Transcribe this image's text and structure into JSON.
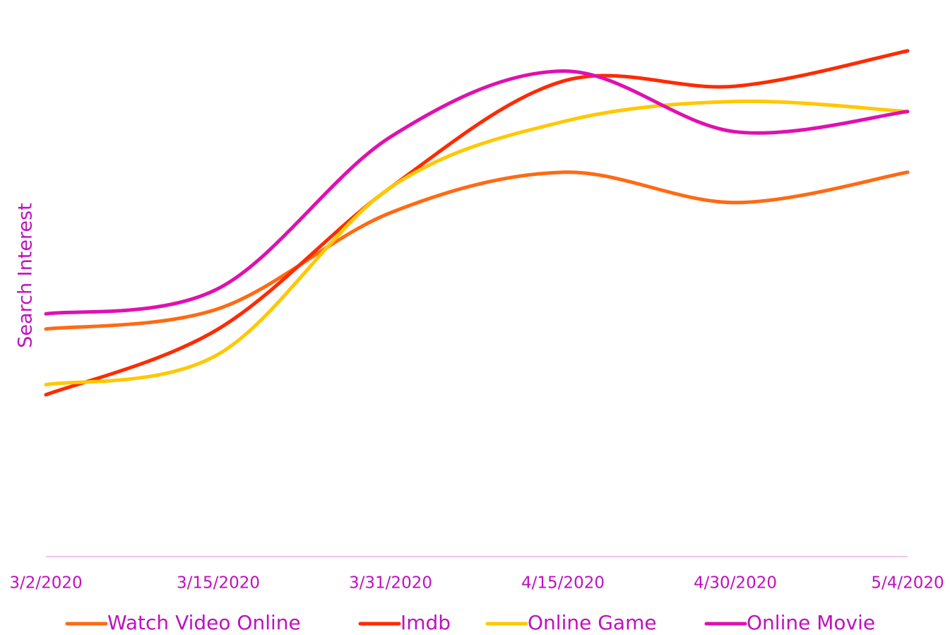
{
  "chart_data": {
    "type": "line",
    "y_label": "Search Interest",
    "categories": [
      "3/2/2020",
      "3/15/2020",
      "3/31/2020",
      "4/15/2020",
      "4/30/2020",
      "5/4/2020"
    ],
    "series": [
      {
        "name": "Watch Video Online",
        "color": "#ff6a13",
        "values": [
          45,
          49,
          68,
          76,
          70,
          76
        ]
      },
      {
        "name": "Imdb",
        "color": "#ff2a00",
        "values": [
          32,
          45,
          73,
          94,
          93,
          100
        ]
      },
      {
        "name": "Online Game",
        "color": "#ffc800",
        "values": [
          34,
          40,
          73,
          86,
          90,
          88
        ]
      },
      {
        "name": "Online Movie",
        "color": "#e010b0",
        "values": [
          48,
          53,
          83,
          96,
          84,
          88
        ]
      }
    ],
    "ylim": [
      0,
      100
    ],
    "smooth": true,
    "legend": "bottom"
  }
}
